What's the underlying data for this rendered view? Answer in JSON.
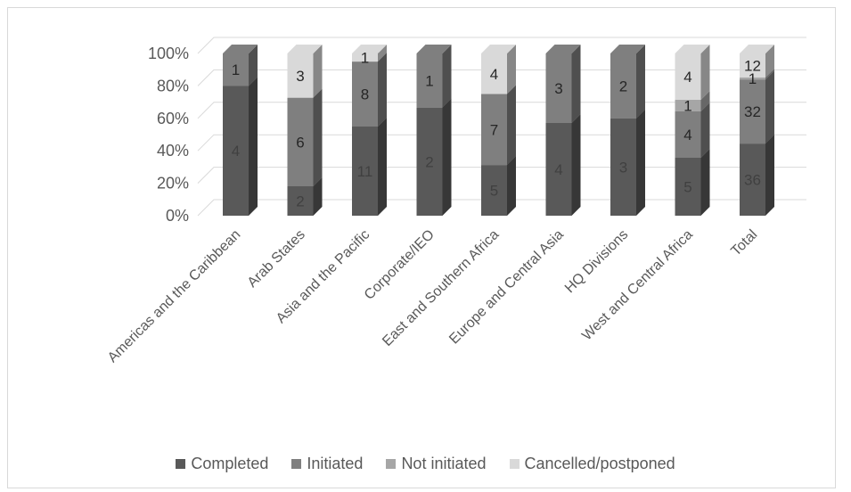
{
  "chart_data": {
    "type": "bar",
    "stacked": "percent",
    "categories": [
      "Americas and the Caribbean",
      "Arab States",
      "Asia and the Pacific",
      "Corporate/IEO",
      "East and Southern Africa",
      "Europe and Central Asia",
      "HQ Divisions",
      "West and Central Africa",
      "Total"
    ],
    "series": [
      {
        "name": "Completed",
        "values": [
          4,
          2,
          11,
          2,
          5,
          4,
          3,
          5,
          36
        ],
        "color": "#595959"
      },
      {
        "name": "Initiated",
        "values": [
          1,
          6,
          8,
          1,
          7,
          3,
          2,
          4,
          32
        ],
        "color": "#7f7f7f"
      },
      {
        "name": "Not initiated",
        "values": [
          0,
          0,
          0,
          0,
          0,
          0,
          0,
          1,
          1
        ],
        "color": "#a6a6a6"
      },
      {
        "name": "Cancelled/postponed",
        "values": [
          0,
          3,
          1,
          0,
          4,
          0,
          0,
          4,
          12
        ],
        "color": "#d9d9d9"
      }
    ],
    "y_ticks": [
      "0%",
      "20%",
      "40%",
      "60%",
      "80%",
      "100%"
    ],
    "ylim": [
      0,
      100
    ],
    "grid": true,
    "legend": "bottom"
  }
}
